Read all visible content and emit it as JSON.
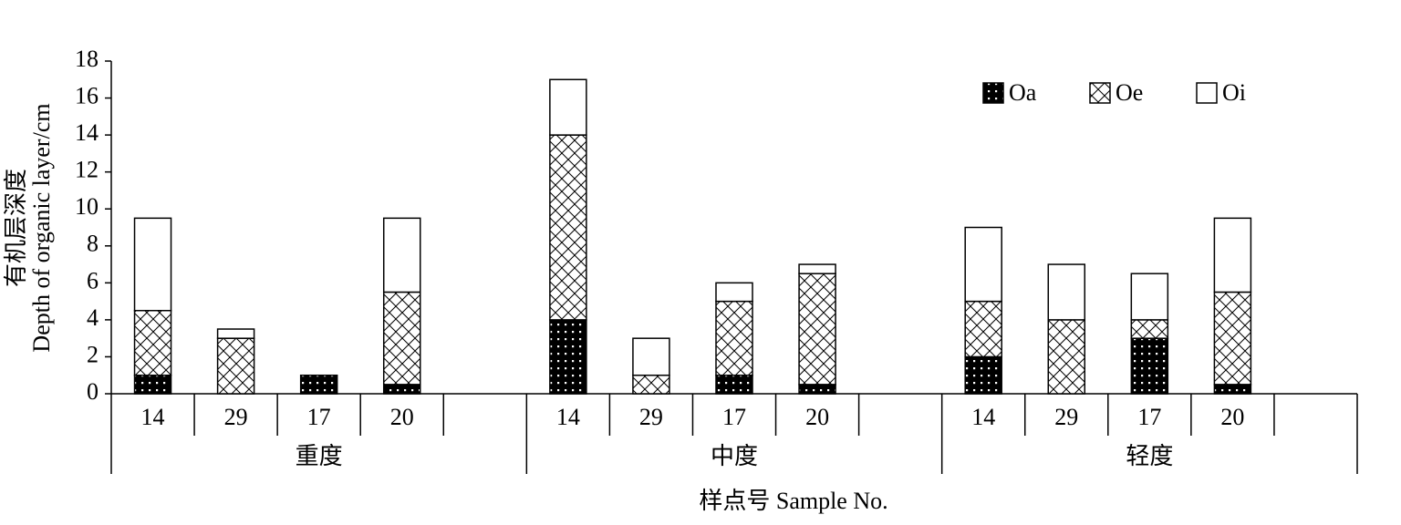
{
  "chart_data": {
    "type": "stacked_bar",
    "ylabel": [
      "有机层深度",
      "Depth of organic layer/cm"
    ],
    "xlabel": "样点号  Sample No.",
    "groups": [
      "重度",
      "中度",
      "轻度"
    ],
    "categories": [
      "14",
      "29",
      "17",
      "20",
      null,
      "14",
      "29",
      "17",
      "20",
      null,
      "14",
      "29",
      "17",
      "20",
      null
    ],
    "series": [
      {
        "name": "Oa",
        "color": "#000000",
        "pattern": "dots",
        "values": [
          1,
          0,
          1,
          0.5,
          null,
          4,
          0,
          1,
          0.5,
          null,
          2,
          0,
          3,
          0.5,
          null
        ]
      },
      {
        "name": "Oe",
        "color": "#000000",
        "pattern": "crosshatch",
        "values": [
          3.5,
          3,
          0,
          5,
          null,
          10,
          1,
          4,
          6,
          null,
          3,
          4,
          1,
          5,
          null
        ]
      },
      {
        "name": "Oi",
        "color": "#ffffff",
        "pattern": "none",
        "values": [
          5,
          0.5,
          0,
          4,
          null,
          3,
          2,
          1,
          0.5,
          null,
          4,
          3,
          2.5,
          4,
          null
        ]
      }
    ],
    "ylim": [
      0,
      18
    ],
    "yticks": [
      0,
      2,
      4,
      6,
      8,
      10,
      12,
      14,
      16,
      18
    ],
    "legend": "top-right"
  }
}
